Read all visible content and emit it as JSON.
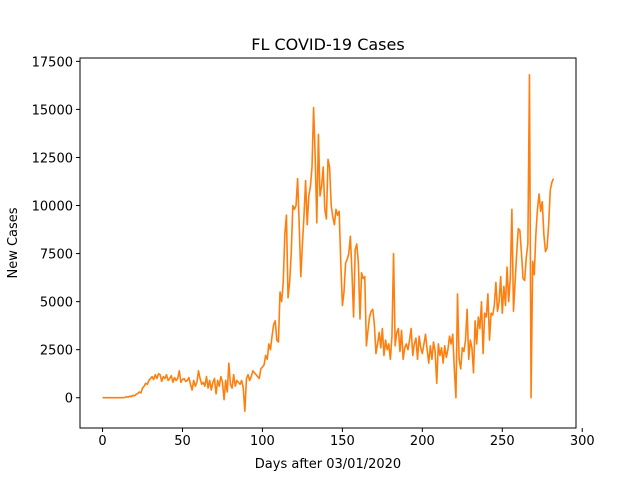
{
  "chart_data": {
    "type": "line",
    "title": "FL COVID-19 Cases",
    "xlabel": "Days after 03/01/2020",
    "ylabel": "New Cases",
    "color": "#ff7f0e",
    "x": [
      0,
      1,
      2,
      3,
      4,
      5,
      6,
      7,
      8,
      9,
      10,
      11,
      12,
      13,
      14,
      15,
      16,
      17,
      18,
      19,
      20,
      21,
      22,
      23,
      24,
      25,
      26,
      27,
      28,
      29,
      30,
      31,
      32,
      33,
      34,
      35,
      36,
      37,
      38,
      39,
      40,
      41,
      42,
      43,
      44,
      45,
      46,
      47,
      48,
      49,
      50,
      51,
      52,
      53,
      54,
      55,
      56,
      57,
      58,
      59,
      60,
      61,
      62,
      63,
      64,
      65,
      66,
      67,
      68,
      69,
      70,
      71,
      72,
      73,
      74,
      75,
      76,
      77,
      78,
      79,
      80,
      81,
      82,
      83,
      84,
      85,
      86,
      87,
      88,
      89,
      90,
      91,
      92,
      93,
      94,
      95,
      96,
      97,
      98,
      99,
      100,
      101,
      102,
      103,
      104,
      105,
      106,
      107,
      108,
      109,
      110,
      111,
      112,
      113,
      114,
      115,
      116,
      117,
      118,
      119,
      120,
      121,
      122,
      123,
      124,
      125,
      126,
      127,
      128,
      129,
      130,
      131,
      132,
      133,
      134,
      135,
      136,
      137,
      138,
      139,
      140,
      141,
      142,
      143,
      144,
      145,
      146,
      147,
      148,
      149,
      150,
      151,
      152,
      153,
      154,
      155,
      156,
      157,
      158,
      159,
      160,
      161,
      162,
      163,
      164,
      165,
      166,
      167,
      168,
      169,
      170,
      171,
      172,
      173,
      174,
      175,
      176,
      177,
      178,
      179,
      180,
      181,
      182,
      183,
      184,
      185,
      186,
      187,
      188,
      189,
      190,
      191,
      192,
      193,
      194,
      195,
      196,
      197,
      198,
      199,
      200,
      201,
      202,
      203,
      204,
      205,
      206,
      207,
      208,
      209,
      210,
      211,
      212,
      213,
      214,
      215,
      216,
      217,
      218,
      219,
      220,
      221,
      222,
      223,
      224,
      225,
      226,
      227,
      228,
      229,
      230,
      231,
      232,
      233,
      234,
      235,
      236,
      237,
      238,
      239,
      240,
      241,
      242,
      243,
      244,
      245,
      246,
      247,
      248,
      249,
      250,
      251,
      252,
      253,
      254,
      255,
      256,
      257,
      258,
      259,
      260,
      261,
      262,
      263,
      264,
      265,
      266,
      267,
      268,
      269,
      270,
      271,
      272,
      273,
      274,
      275,
      276,
      277,
      278,
      279,
      280,
      281,
      282
    ],
    "values": [
      0,
      0,
      0,
      0,
      0,
      0,
      0,
      0,
      0,
      0,
      0,
      0,
      0,
      0,
      20,
      50,
      30,
      80,
      60,
      120,
      100,
      180,
      220,
      300,
      250,
      500,
      600,
      750,
      700,
      900,
      1000,
      1100,
      950,
      1200,
      1000,
      1250,
      1200,
      850,
      1100,
      1000,
      1200,
      900,
      1000,
      1150,
      800,
      1050,
      900,
      1000,
      1400,
      800,
      950,
      1000,
      850,
      900,
      1050,
      700,
      400,
      900,
      600,
      800,
      1400,
      1000,
      700,
      800,
      600,
      1100,
      500,
      900,
      400,
      800,
      1000,
      200,
      900,
      600,
      1100,
      800,
      -100,
      900,
      300,
      1800,
      700,
      500,
      1200,
      600,
      900,
      800,
      700,
      900,
      500,
      -700,
      1000,
      1200,
      900,
      1100,
      1400,
      1300,
      1200,
      1100,
      1000,
      1500,
      1600,
      1700,
      2200,
      2000,
      2800,
      2500,
      3200,
      3800,
      4000,
      3000,
      2900,
      5500,
      5000,
      6000,
      8500,
      9500,
      5200,
      6000,
      7500,
      10000,
      9800,
      10000,
      11400,
      9000,
      6300,
      8000,
      9500,
      11300,
      9000,
      10500,
      11000,
      12000,
      15100,
      12500,
      9100,
      13700,
      10500,
      11000,
      12000,
      9800,
      9300,
      12400,
      12000,
      10000,
      9400,
      9000,
      9800,
      9500,
      9700,
      7000,
      4800,
      5500,
      7000,
      7200,
      7500,
      8400,
      6500,
      4200,
      7700,
      8000,
      7000,
      4100,
      6500,
      6200,
      6300,
      2700,
      3500,
      4200,
      4500,
      4600,
      3800,
      2300,
      2800,
      3400,
      2600,
      3600,
      2200,
      3000,
      2500,
      2800,
      2000,
      3200,
      7500,
      2700,
      3400,
      3600,
      2400,
      3500,
      2000,
      2600,
      2800,
      2500,
      3000,
      3600,
      2200,
      2800,
      3100,
      2000,
      3200,
      2600,
      2300,
      2800,
      3300,
      2500,
      1800,
      2700,
      2000,
      2900,
      2400,
      750,
      2800,
      2200,
      2600,
      1800,
      2700,
      2100,
      2500,
      3200,
      2800,
      3300,
      1500,
      0,
      5400,
      2000,
      1500,
      2600,
      2400,
      3000,
      4600,
      2000,
      3000,
      2600,
      1300,
      4000,
      2800,
      4200,
      3600,
      5000,
      2300,
      4400,
      4200,
      5400,
      3000,
      4400,
      4300,
      4800,
      6000,
      4500,
      5000,
      6300,
      4400,
      5800,
      4800,
      6800,
      5000,
      6200,
      9800,
      4500,
      6000,
      7500,
      8800,
      8700,
      7500,
      6200,
      6100,
      7300,
      8000,
      16800,
      0,
      7100,
      6400,
      8500,
      9800,
      10600,
      9700,
      10200,
      8500,
      7600,
      7800,
      9000,
      10800,
      11200,
      11400
    ],
    "xlim": [
      -14.1,
      296.1
    ],
    "xticks": [
      0,
      50,
      100,
      150,
      200,
      250,
      300
    ],
    "ylim": [
      -1575,
      17675
    ],
    "yticks": [
      0,
      2500,
      5000,
      7500,
      10000,
      12500,
      15000,
      17500
    ]
  }
}
